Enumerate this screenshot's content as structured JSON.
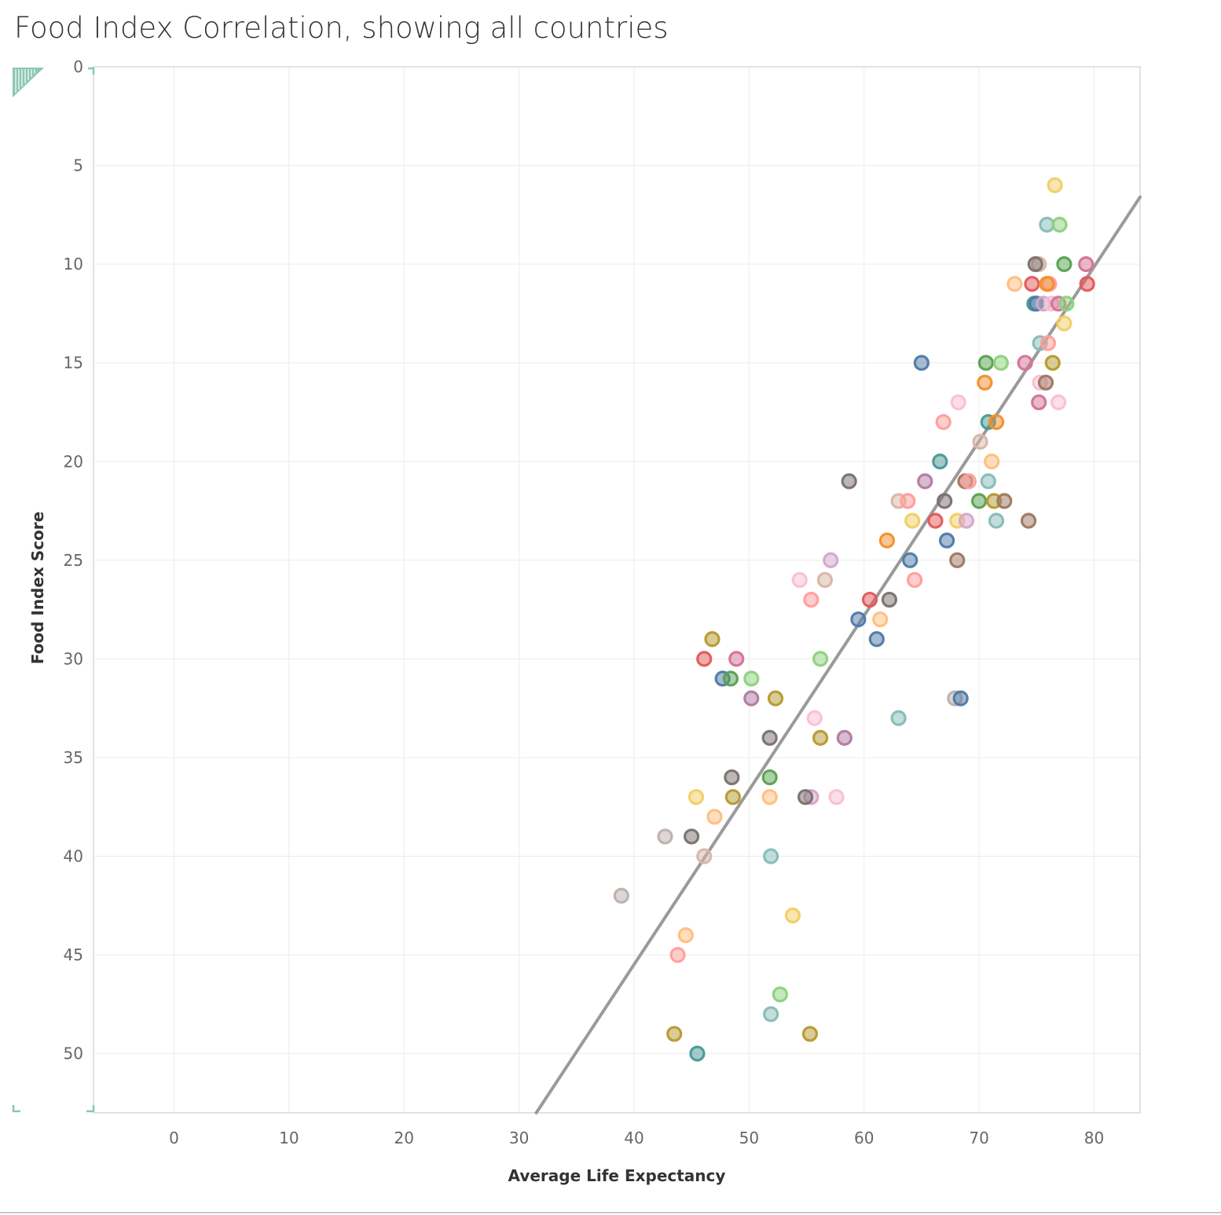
{
  "chart_data": {
    "type": "scatter",
    "title": "Food Index Correlation, showing all countries",
    "xlabel": "Average Life Expectancy",
    "ylabel": "Food Index Score",
    "xlim": [
      -7,
      84
    ],
    "ylim": [
      53,
      0
    ],
    "y_reversed": true,
    "x_ticks": [
      0,
      10,
      20,
      30,
      40,
      50,
      60,
      70,
      80
    ],
    "y_ticks": [
      0,
      5,
      10,
      15,
      20,
      25,
      30,
      35,
      40,
      45,
      50
    ],
    "grid": true,
    "legend": "none",
    "trendline": {
      "x1": 31.5,
      "y1": 53,
      "x2": 84,
      "y2": 6.6,
      "color": "#9a9a9a"
    },
    "colors": {
      "blue": "#4e79a7",
      "ltblue": "#a0cbe8",
      "orange": "#f28e2b",
      "ltorange": "#ffbe7d",
      "green": "#59a14f",
      "ltgreen": "#8cd17d",
      "olive": "#b6992d",
      "yellow": "#f1ce63",
      "teal": "#499894",
      "ltteal": "#86bcb6",
      "red": "#e15759",
      "pink": "#ff9d9a",
      "gray": "#79706e",
      "ltgray": "#bab0ac",
      "magenta": "#d37295",
      "ltpink": "#fabfd2",
      "purple": "#b07aa1",
      "ltpurple": "#d4a6c8",
      "brown": "#9d7660",
      "tan": "#d7b5a6"
    },
    "points": [
      {
        "x": 76.6,
        "y": 6,
        "c": "yellow"
      },
      {
        "x": 75.9,
        "y": 8,
        "c": "ltteal"
      },
      {
        "x": 77.0,
        "y": 8,
        "c": "ltgreen"
      },
      {
        "x": 75.2,
        "y": 10,
        "c": "tan"
      },
      {
        "x": 74.9,
        "y": 10,
        "c": "gray"
      },
      {
        "x": 77.4,
        "y": 10,
        "c": "green"
      },
      {
        "x": 79.3,
        "y": 10,
        "c": "magenta"
      },
      {
        "x": 73.1,
        "y": 11,
        "c": "ltorange"
      },
      {
        "x": 74.6,
        "y": 11,
        "c": "red"
      },
      {
        "x": 76.1,
        "y": 11,
        "c": "pink"
      },
      {
        "x": 75.9,
        "y": 11,
        "c": "orange"
      },
      {
        "x": 79.4,
        "y": 11,
        "c": "red"
      },
      {
        "x": 74.8,
        "y": 12,
        "c": "teal"
      },
      {
        "x": 75.0,
        "y": 12,
        "c": "blue"
      },
      {
        "x": 75.6,
        "y": 12,
        "c": "ltpurple"
      },
      {
        "x": 76.3,
        "y": 12,
        "c": "ltpink"
      },
      {
        "x": 76.9,
        "y": 12,
        "c": "magenta"
      },
      {
        "x": 77.6,
        "y": 12,
        "c": "ltgreen"
      },
      {
        "x": 77.4,
        "y": 13,
        "c": "yellow"
      },
      {
        "x": 75.3,
        "y": 14,
        "c": "ltteal"
      },
      {
        "x": 76.0,
        "y": 14,
        "c": "pink"
      },
      {
        "x": 65.0,
        "y": 15,
        "c": "blue"
      },
      {
        "x": 70.6,
        "y": 15,
        "c": "green"
      },
      {
        "x": 71.9,
        "y": 15,
        "c": "ltgreen"
      },
      {
        "x": 74.0,
        "y": 15,
        "c": "magenta"
      },
      {
        "x": 76.4,
        "y": 15,
        "c": "olive"
      },
      {
        "x": 70.5,
        "y": 16,
        "c": "orange"
      },
      {
        "x": 75.3,
        "y": 16,
        "c": "ltpink"
      },
      {
        "x": 75.8,
        "y": 16,
        "c": "brown"
      },
      {
        "x": 68.2,
        "y": 17,
        "c": "ltpink"
      },
      {
        "x": 75.2,
        "y": 17,
        "c": "magenta"
      },
      {
        "x": 76.9,
        "y": 17,
        "c": "ltpink"
      },
      {
        "x": 66.9,
        "y": 18,
        "c": "pink"
      },
      {
        "x": 70.8,
        "y": 18,
        "c": "teal"
      },
      {
        "x": 71.5,
        "y": 18,
        "c": "orange"
      },
      {
        "x": 70.1,
        "y": 19,
        "c": "tan"
      },
      {
        "x": 66.6,
        "y": 20,
        "c": "teal"
      },
      {
        "x": 71.1,
        "y": 20,
        "c": "ltorange"
      },
      {
        "x": 58.7,
        "y": 21,
        "c": "gray"
      },
      {
        "x": 65.3,
        "y": 21,
        "c": "purple"
      },
      {
        "x": 68.8,
        "y": 21,
        "c": "brown"
      },
      {
        "x": 69.1,
        "y": 21,
        "c": "pink"
      },
      {
        "x": 70.8,
        "y": 21,
        "c": "ltteal"
      },
      {
        "x": 63.0,
        "y": 22,
        "c": "tan"
      },
      {
        "x": 63.8,
        "y": 22,
        "c": "pink"
      },
      {
        "x": 67.0,
        "y": 22,
        "c": "gray"
      },
      {
        "x": 70.0,
        "y": 22,
        "c": "green"
      },
      {
        "x": 71.3,
        "y": 22,
        "c": "olive"
      },
      {
        "x": 72.2,
        "y": 22,
        "c": "brown"
      },
      {
        "x": 64.2,
        "y": 23,
        "c": "yellow"
      },
      {
        "x": 66.2,
        "y": 23,
        "c": "red"
      },
      {
        "x": 68.1,
        "y": 23,
        "c": "yellow"
      },
      {
        "x": 68.9,
        "y": 23,
        "c": "ltpurple"
      },
      {
        "x": 71.5,
        "y": 23,
        "c": "ltteal"
      },
      {
        "x": 74.3,
        "y": 23,
        "c": "brown"
      },
      {
        "x": 62.0,
        "y": 24,
        "c": "orange"
      },
      {
        "x": 67.2,
        "y": 24,
        "c": "blue"
      },
      {
        "x": 57.1,
        "y": 25,
        "c": "ltpurple"
      },
      {
        "x": 64.0,
        "y": 25,
        "c": "blue"
      },
      {
        "x": 68.1,
        "y": 25,
        "c": "brown"
      },
      {
        "x": 54.4,
        "y": 26,
        "c": "ltpink"
      },
      {
        "x": 56.6,
        "y": 26,
        "c": "tan"
      },
      {
        "x": 64.4,
        "y": 26,
        "c": "pink"
      },
      {
        "x": 55.4,
        "y": 27,
        "c": "pink"
      },
      {
        "x": 60.5,
        "y": 27,
        "c": "red"
      },
      {
        "x": 62.2,
        "y": 27,
        "c": "gray"
      },
      {
        "x": 59.5,
        "y": 28,
        "c": "blue"
      },
      {
        "x": 61.4,
        "y": 28,
        "c": "ltorange"
      },
      {
        "x": 46.8,
        "y": 29,
        "c": "olive"
      },
      {
        "x": 61.1,
        "y": 29,
        "c": "blue"
      },
      {
        "x": 46.1,
        "y": 30,
        "c": "red"
      },
      {
        "x": 48.9,
        "y": 30,
        "c": "magenta"
      },
      {
        "x": 56.2,
        "y": 30,
        "c": "ltgreen"
      },
      {
        "x": 47.7,
        "y": 31,
        "c": "blue"
      },
      {
        "x": 48.4,
        "y": 31,
        "c": "green"
      },
      {
        "x": 50.2,
        "y": 31,
        "c": "ltgreen"
      },
      {
        "x": 50.2,
        "y": 32,
        "c": "purple"
      },
      {
        "x": 52.3,
        "y": 32,
        "c": "olive"
      },
      {
        "x": 67.9,
        "y": 32,
        "c": "ltgray"
      },
      {
        "x": 68.4,
        "y": 32,
        "c": "blue"
      },
      {
        "x": 55.7,
        "y": 33,
        "c": "ltpink"
      },
      {
        "x": 63.0,
        "y": 33,
        "c": "ltteal"
      },
      {
        "x": 51.8,
        "y": 34,
        "c": "gray"
      },
      {
        "x": 56.2,
        "y": 34,
        "c": "olive"
      },
      {
        "x": 58.3,
        "y": 34,
        "c": "purple"
      },
      {
        "x": 48.5,
        "y": 36,
        "c": "gray"
      },
      {
        "x": 51.8,
        "y": 36,
        "c": "green"
      },
      {
        "x": 45.4,
        "y": 37,
        "c": "yellow"
      },
      {
        "x": 48.6,
        "y": 37,
        "c": "olive"
      },
      {
        "x": 51.8,
        "y": 37,
        "c": "ltorange"
      },
      {
        "x": 55.4,
        "y": 37,
        "c": "ltpurple"
      },
      {
        "x": 54.9,
        "y": 37,
        "c": "gray"
      },
      {
        "x": 57.6,
        "y": 37,
        "c": "ltpink"
      },
      {
        "x": 47.0,
        "y": 38,
        "c": "ltorange"
      },
      {
        "x": 42.7,
        "y": 39,
        "c": "ltgray"
      },
      {
        "x": 45.0,
        "y": 39,
        "c": "gray"
      },
      {
        "x": 46.1,
        "y": 40,
        "c": "tan"
      },
      {
        "x": 51.9,
        "y": 40,
        "c": "ltteal"
      },
      {
        "x": 38.9,
        "y": 42,
        "c": "ltgray"
      },
      {
        "x": 53.8,
        "y": 43,
        "c": "yellow"
      },
      {
        "x": 44.5,
        "y": 44,
        "c": "ltorange"
      },
      {
        "x": 43.8,
        "y": 45,
        "c": "pink"
      },
      {
        "x": 52.7,
        "y": 47,
        "c": "ltgreen"
      },
      {
        "x": 51.9,
        "y": 48,
        "c": "ltteal"
      },
      {
        "x": 43.5,
        "y": 49,
        "c": "olive"
      },
      {
        "x": 55.3,
        "y": 49,
        "c": "olive"
      },
      {
        "x": 45.5,
        "y": 50,
        "c": "teal"
      }
    ]
  }
}
